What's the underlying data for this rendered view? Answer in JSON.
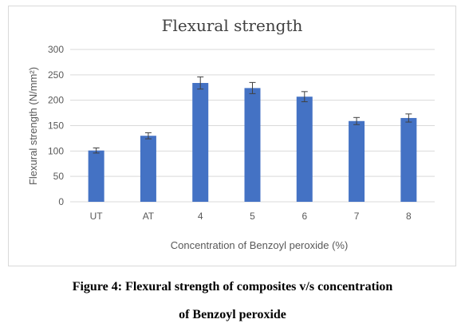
{
  "chart_data": {
    "type": "bar",
    "title": "Flexural strength",
    "xlabel": "Concentration of Benzoyl peroxide (%)",
    "ylabel": "Flexural strength (N/mm²)",
    "categories": [
      "UT",
      "AT",
      "4",
      "5",
      "6",
      "7",
      "8"
    ],
    "values": [
      101,
      130,
      234,
      224,
      207,
      159,
      165
    ],
    "error": [
      5,
      6,
      12,
      11,
      10,
      7,
      8
    ],
    "ylim": [
      0,
      300
    ],
    "yticks": [
      "0",
      "50",
      "100",
      "150",
      "200",
      "250",
      "300"
    ],
    "grid": true,
    "legend": "none",
    "bar_color": "#4472c4"
  },
  "caption": {
    "line1": "Figure 4: Flexural strength of composites v/s concentration",
    "line2": "of Benzoyl peroxide"
  }
}
